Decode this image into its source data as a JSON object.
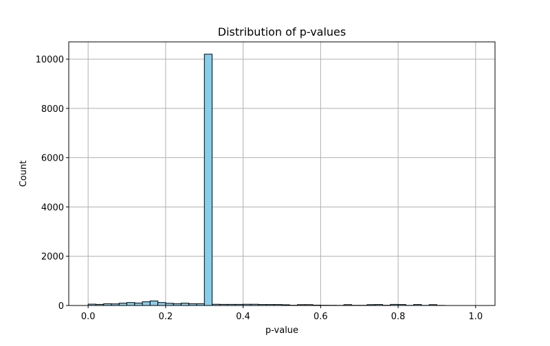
{
  "chart_data": {
    "type": "bar",
    "title": "Distribution of p-values",
    "xlabel": "p-value",
    "ylabel": "Count",
    "xlim": [
      -0.05,
      1.05
    ],
    "ylim": [
      0,
      10700
    ],
    "xticks": [
      0.0,
      0.2,
      0.4,
      0.6,
      0.8,
      1.0
    ],
    "xtick_labels": [
      "0.0",
      "0.2",
      "0.4",
      "0.6",
      "0.8",
      "1.0"
    ],
    "yticks": [
      0,
      2000,
      4000,
      6000,
      8000,
      10000
    ],
    "ytick_labels": [
      "0",
      "2000",
      "4000",
      "6000",
      "8000",
      "10000"
    ],
    "grid": true,
    "bin_edges_start": 0.0,
    "bin_width": 0.02,
    "values": [
      55,
      45,
      70,
      65,
      95,
      120,
      100,
      150,
      185,
      120,
      90,
      70,
      95,
      70,
      70,
      10200,
      50,
      45,
      45,
      45,
      50,
      50,
      40,
      40,
      40,
      30,
      10,
      35,
      35,
      15,
      10,
      8,
      5,
      35,
      8,
      8,
      35,
      40,
      10,
      45,
      40,
      5,
      40,
      5,
      35,
      5
    ]
  },
  "colors": {
    "bar_fill": "#87ceeb",
    "bar_edge": "#000000",
    "grid": "#b0b0b0",
    "axes": "#000000"
  }
}
